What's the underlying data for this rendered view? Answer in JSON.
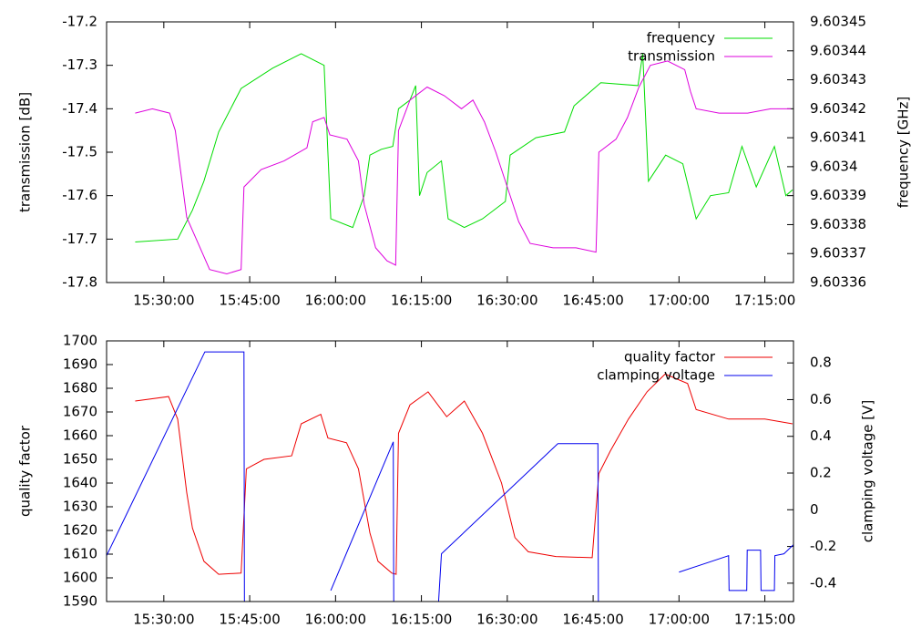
{
  "chart_data": [
    {
      "type": "line",
      "ylabel": "transmission [dB]",
      "y2label": "frequency [GHz]",
      "xlim": [
        "15:20:00",
        "17:20:00"
      ],
      "xticks": [
        "15:30:00",
        "15:45:00",
        "16:00:00",
        "16:15:00",
        "16:30:00",
        "16:45:00",
        "17:00:00",
        "17:15:00"
      ],
      "ylim": [
        -17.8,
        -17.2
      ],
      "yticks": [
        -17.8,
        -17.7,
        -17.6,
        -17.5,
        -17.4,
        -17.3,
        -17.2
      ],
      "y2lim": [
        9.60336,
        9.60345
      ],
      "y2ticks": [
        9.60336,
        9.60337,
        9.60338,
        9.60339,
        9.6034,
        9.60341,
        9.60342,
        9.60343,
        9.60344,
        9.60345
      ],
      "legend": "top-right",
      "grid": false,
      "series": [
        {
          "name": "frequency",
          "color": "#00dd00",
          "axis": "y2",
          "x": [
            "15:25:00",
            "15:32:25",
            "15:35:00",
            "15:37:00",
            "15:39:35",
            "15:43:30",
            "15:49:00",
            "15:54:00",
            "15:58:00",
            "15:59:10",
            "16:03:00",
            "16:05:00",
            "16:06:00",
            "16:08:00",
            "16:10:00",
            "16:11:00",
            "16:13:00",
            "16:14:00",
            "16:14:40",
            "16:16:00",
            "16:18:30",
            "16:19:40",
            "16:22:30",
            "16:25:40",
            "16:29:40",
            "16:30:30",
            "16:35:00",
            "16:40:00",
            "16:41:40",
            "16:46:20",
            "16:52:50",
            "16:53:40",
            "16:54:40",
            "16:57:40",
            "17:00:40",
            "17:03:00",
            "17:05:30",
            "17:08:40",
            "17:11:00",
            "17:13:30",
            "17:16:40",
            "17:18:40",
            "17:19:50"
          ],
          "values": [
            9.603374,
            9.603375,
            9.603385,
            9.603395,
            9.603412,
            9.603427,
            9.603434,
            9.603439,
            9.603435,
            9.603382,
            9.603379,
            9.60339,
            9.603404,
            9.603406,
            9.603407,
            9.60342,
            9.603423,
            9.603428,
            9.60339,
            9.603398,
            9.603402,
            9.603382,
            9.603379,
            9.603382,
            9.603388,
            9.603404,
            9.60341,
            9.603412,
            9.603421,
            9.603429,
            9.603428,
            9.603439,
            9.603395,
            9.603404,
            9.603401,
            9.603382,
            9.60339,
            9.603391,
            9.603407,
            9.603393,
            9.603407,
            9.60339,
            9.603392
          ]
        },
        {
          "name": "transmission",
          "color": "#dd00dd",
          "x": [
            "15:25:00",
            "15:28:00",
            "15:31:00",
            "15:32:00",
            "15:33:00",
            "15:34:00",
            "15:36:00",
            "15:38:00",
            "15:41:00",
            "15:43:30",
            "15:44:00",
            "15:47:00",
            "15:51:00",
            "15:55:00",
            "15:56:00",
            "15:58:00",
            "15:59:00",
            "16:02:00",
            "16:04:00",
            "16:05:00",
            "16:07:00",
            "16:09:00",
            "16:10:30",
            "16:11:00",
            "16:13:00",
            "16:16:00",
            "16:19:00",
            "16:22:00",
            "16:24:00",
            "16:26:00",
            "16:28:00",
            "16:30:00",
            "16:32:00",
            "16:34:00",
            "16:38:00",
            "16:42:00",
            "16:45:30",
            "16:46:00",
            "16:49:00",
            "16:51:00",
            "16:53:00",
            "16:55:00",
            "16:58:00",
            "17:01:00",
            "17:02:00",
            "17:03:00",
            "17:07:00",
            "17:12:00",
            "17:16:00",
            "17:19:30"
          ],
          "values": [
            -17.41,
            -17.4,
            -17.41,
            -17.45,
            -17.55,
            -17.65,
            -17.71,
            -17.77,
            -17.78,
            -17.77,
            -17.58,
            -17.54,
            -17.52,
            -17.49,
            -17.43,
            -17.42,
            -17.46,
            -17.47,
            -17.52,
            -17.62,
            -17.72,
            -17.75,
            -17.76,
            -17.45,
            -17.38,
            -17.35,
            -17.37,
            -17.4,
            -17.38,
            -17.43,
            -17.5,
            -17.58,
            -17.66,
            -17.71,
            -17.72,
            -17.72,
            -17.73,
            -17.5,
            -17.47,
            -17.42,
            -17.35,
            -17.3,
            -17.29,
            -17.31,
            -17.36,
            -17.4,
            -17.41,
            -17.41,
            -17.4,
            -17.4
          ]
        }
      ]
    },
    {
      "type": "line",
      "ylabel": "quality factor",
      "y2label": "clamping voltage [V]",
      "xlim": [
        "15:20:00",
        "17:20:00"
      ],
      "xticks": [
        "15:30:00",
        "15:45:00",
        "16:00:00",
        "16:15:00",
        "16:30:00",
        "16:45:00",
        "17:00:00",
        "17:15:00"
      ],
      "ylim": [
        1590,
        1700
      ],
      "yticks": [
        1590,
        1600,
        1610,
        1620,
        1630,
        1640,
        1650,
        1660,
        1670,
        1680,
        1690,
        1700
      ],
      "y2lim": [
        -0.5,
        0.92
      ],
      "y2ticks": [
        -0.4,
        -0.2,
        0,
        0.2,
        0.4,
        0.6,
        0.8
      ],
      "legend": "top-right",
      "grid": false,
      "series": [
        {
          "name": "quality factor",
          "color": "#ee0000",
          "x": [
            "15:25:00",
            "15:30:50",
            "15:32:25",
            "15:34:00",
            "15:35:00",
            "15:37:00",
            "15:39:35",
            "15:43:30",
            "15:44:25",
            "15:47:30",
            "15:52:20",
            "15:54:00",
            "15:57:25",
            "15:58:40",
            "16:01:55",
            "16:04:00",
            "16:06:00",
            "16:07:25",
            "16:09:50",
            "16:10:35",
            "16:11:00",
            "16:13:00",
            "16:16:10",
            "16:19:25",
            "16:22:30",
            "16:25:40",
            "16:29:00",
            "16:31:20",
            "16:33:40",
            "16:38:30",
            "16:44:50",
            "16:46:00",
            "16:48:00",
            "16:51:10",
            "16:54:25",
            "16:57:35",
            "17:01:30",
            "17:03:00",
            "17:08:40",
            "17:15:00",
            "17:19:50"
          ],
          "values": [
            1674.6,
            1676.5,
            1667,
            1636,
            1621,
            1607,
            1601.5,
            1602,
            1646,
            1650,
            1651.5,
            1665,
            1669,
            1659,
            1657,
            1646,
            1619,
            1607,
            1602,
            1601.5,
            1661,
            1673,
            1678.5,
            1668,
            1674.6,
            1661,
            1640,
            1617,
            1611,
            1609,
            1608.5,
            1644,
            1653.5,
            1667,
            1678.5,
            1686,
            1682,
            1671,
            1667,
            1667,
            1665
          ]
        },
        {
          "name": "clamping voltage",
          "color": "#0000ee",
          "axis": "y2",
          "x": [
            "15:20:00",
            "15:37:10",
            "15:44:00",
            "15:44:05",
            "15:51:00",
            "15:59:10",
            "16:10:05",
            "16:10:10",
            "16:14:00",
            "16:18:00",
            "16:18:30",
            "16:38:50",
            "16:45:50",
            "16:45:55",
            "16:53:00",
            "17:00:00",
            "17:08:40",
            "17:08:45",
            "17:11:50",
            "17:11:55",
            "17:14:15",
            "17:14:20",
            "17:16:40",
            "17:16:45",
            "17:18:20",
            "17:20:00"
          ],
          "values": [
            -0.25,
            0.86,
            0.86,
            -0.5,
            null,
            -0.44,
            0.37,
            -0.5,
            null,
            -0.5,
            -0.24,
            0.36,
            0.36,
            -0.5,
            null,
            -0.34,
            -0.25,
            -0.44,
            -0.44,
            -0.22,
            -0.22,
            -0.44,
            -0.44,
            -0.25,
            -0.24,
            -0.19
          ]
        }
      ]
    }
  ]
}
